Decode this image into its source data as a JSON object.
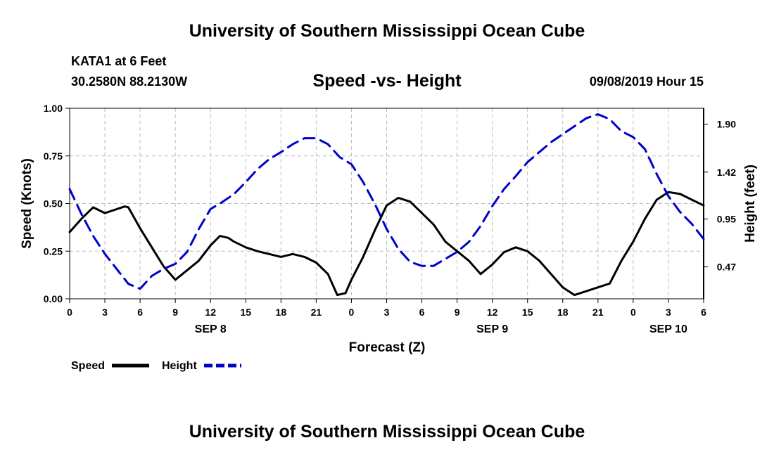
{
  "header": {
    "title": "University of Southern Mississippi Ocean Cube",
    "station": "KATA1 at 6 Feet",
    "coordinates": "30.2580N 88.2130W",
    "date": "09/08/2019 Hour 15"
  },
  "footer": {
    "title": "University of Southern Mississippi Ocean Cube"
  },
  "chart_data": {
    "type": "line",
    "title": "Speed -vs- Height",
    "xlabel": "Forecast (Z)",
    "ylabel": "Speed (Knots)",
    "y2label": "Height (feet)",
    "grid": true,
    "legend_position": "bottom-left",
    "x_units": "hours since 2019-09-08 00Z",
    "xlim": [
      0,
      54
    ],
    "ylim": [
      0,
      1.0
    ],
    "y2lim": [
      0.15,
      2.06
    ],
    "x_ticks": [
      0,
      3,
      6,
      9,
      12,
      15,
      18,
      21,
      24,
      27,
      30,
      33,
      36,
      39,
      42,
      45,
      48,
      51,
      54
    ],
    "x_tick_labels": [
      "0",
      "3",
      "6",
      "9",
      "12",
      "15",
      "18",
      "21",
      "0",
      "3",
      "6",
      "9",
      "12",
      "15",
      "18",
      "21",
      "0",
      "3",
      "6"
    ],
    "date_labels": [
      {
        "x": 12,
        "label": "SEP 8"
      },
      {
        "x": 36,
        "label": "SEP 9"
      },
      {
        "x": 51,
        "label": "SEP 10"
      }
    ],
    "y_ticks": [
      0,
      0.25,
      0.5,
      0.75,
      1.0
    ],
    "y_tick_labels": [
      "0.00",
      "0.25",
      "0.50",
      "0.75",
      "1.00"
    ],
    "y2_ticks": [
      0.47,
      0.95,
      1.42,
      1.9
    ],
    "y2_tick_labels": [
      "0.47",
      "0.95",
      "1.42",
      "1.90"
    ],
    "series": [
      {
        "name": "Speed",
        "axis": "left",
        "color": "#000000",
        "style": "solid",
        "x": [
          0,
          1,
          2,
          3,
          4,
          4.7,
          5,
          6,
          7,
          8,
          9,
          10,
          11,
          12,
          12.8,
          13.5,
          14,
          15,
          16,
          17,
          18,
          19,
          20,
          21,
          22,
          22.8,
          23.5,
          24,
          25,
          26,
          27,
          28,
          29,
          30,
          31,
          32,
          33,
          34,
          35,
          36,
          37,
          38,
          39,
          40,
          41,
          42,
          43,
          44,
          45,
          46,
          47,
          48,
          49,
          50,
          51,
          52,
          53,
          54
        ],
        "values": [
          0.35,
          0.42,
          0.48,
          0.45,
          0.47,
          0.485,
          0.48,
          0.37,
          0.27,
          0.17,
          0.1,
          0.15,
          0.2,
          0.28,
          0.33,
          0.32,
          0.3,
          0.27,
          0.25,
          0.235,
          0.22,
          0.235,
          0.22,
          0.19,
          0.13,
          0.02,
          0.03,
          0.1,
          0.22,
          0.36,
          0.49,
          0.53,
          0.51,
          0.45,
          0.39,
          0.3,
          0.25,
          0.2,
          0.13,
          0.18,
          0.245,
          0.27,
          0.25,
          0.2,
          0.13,
          0.06,
          0.02,
          0.04,
          0.06,
          0.08,
          0.2,
          0.3,
          0.42,
          0.52,
          0.56,
          0.55,
          0.52,
          0.49
        ]
      },
      {
        "name": "Height",
        "axis": "right",
        "color": "#0000cc",
        "style": "dashed",
        "x": [
          0,
          1,
          2,
          3,
          4,
          5,
          6,
          7,
          8,
          9,
          10,
          11,
          12,
          13,
          14,
          15,
          16,
          17,
          18,
          19,
          20,
          21,
          22,
          23,
          24,
          25,
          26,
          27,
          28,
          29,
          30,
          31,
          32,
          33,
          34,
          35,
          36,
          37,
          38,
          39,
          40,
          41,
          42,
          43,
          44,
          45,
          46,
          47,
          48,
          49,
          50,
          51,
          52,
          53,
          54
        ],
        "values": [
          1.25,
          1.0,
          0.78,
          0.6,
          0.45,
          0.3,
          0.25,
          0.38,
          0.45,
          0.5,
          0.62,
          0.85,
          1.05,
          1.12,
          1.2,
          1.32,
          1.45,
          1.55,
          1.62,
          1.7,
          1.76,
          1.76,
          1.7,
          1.57,
          1.5,
          1.32,
          1.1,
          0.85,
          0.65,
          0.52,
          0.48,
          0.48,
          0.55,
          0.62,
          0.72,
          0.88,
          1.08,
          1.25,
          1.38,
          1.52,
          1.62,
          1.72,
          1.8,
          1.88,
          1.96,
          2.0,
          1.95,
          1.83,
          1.77,
          1.65,
          1.4,
          1.18,
          1.02,
          0.9,
          0.75
        ]
      }
    ]
  }
}
